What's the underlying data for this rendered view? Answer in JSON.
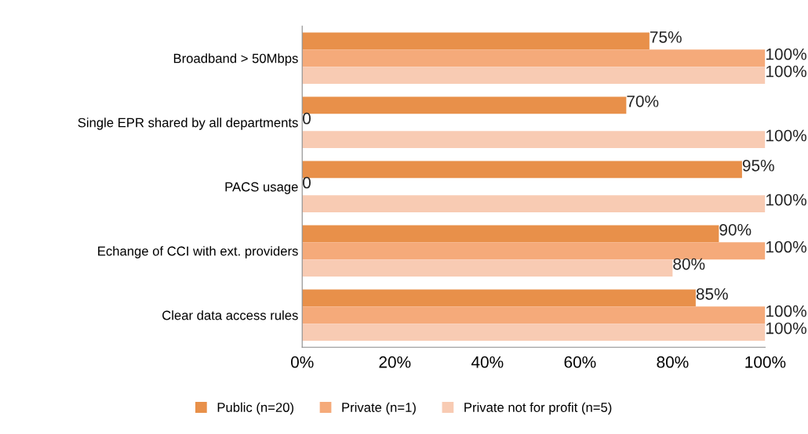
{
  "chart_data": {
    "type": "bar",
    "orientation": "horizontal",
    "categories": [
      "Broadband > 50Mbps",
      "Single EPR shared by all departments",
      "PACS usage",
      "Echange of CCI with ext. providers",
      "Clear data access rules"
    ],
    "series": [
      {
        "name": "Public (n=20)",
        "color": "#e8904a",
        "values": [
          75,
          70,
          95,
          90,
          85
        ],
        "value_labels": [
          "75%",
          "70%",
          "95%",
          "90%",
          "85%"
        ]
      },
      {
        "name": "Private (n=1)",
        "color": "#f5aa7a",
        "values": [
          100,
          0,
          0,
          100,
          100
        ],
        "value_labels": [
          "100%",
          "0",
          "0",
          "100%",
          "100%"
        ]
      },
      {
        "name": "Private not for profit (n=5)",
        "color": "#f8cbb3",
        "values": [
          100,
          100,
          100,
          80,
          100
        ],
        "value_labels": [
          "100%",
          "100%",
          "100%",
          "80%",
          "100%"
        ]
      }
    ],
    "xlim": [
      0,
      100
    ],
    "xticks": [
      {
        "value": 0,
        "label": "0%"
      },
      {
        "value": 20,
        "label": "20%"
      },
      {
        "value": 40,
        "label": "40%"
      },
      {
        "value": 60,
        "label": "60%"
      },
      {
        "value": 80,
        "label": "80%"
      },
      {
        "value": 100,
        "label": "100%"
      }
    ],
    "grid": false,
    "legend": "bottom"
  }
}
